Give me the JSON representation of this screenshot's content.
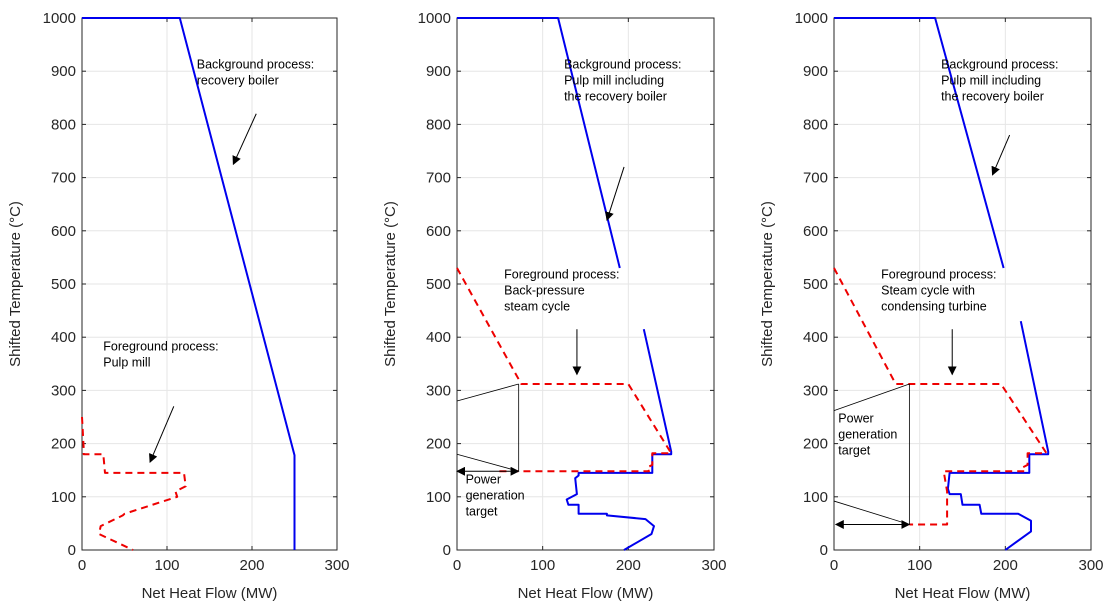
{
  "chart_data": [
    {
      "type": "line",
      "xlabel": "Net Heat Flow (MW)",
      "ylabel": "Shifted Temperature (°C)",
      "xlim": [
        0,
        300
      ],
      "ylim": [
        0,
        1000
      ],
      "xticks": [
        "0",
        "100",
        "200",
        "300"
      ],
      "yticks": [
        "0",
        "100",
        "200",
        "300",
        "400",
        "500",
        "600",
        "700",
        "800",
        "900",
        "1000"
      ],
      "grid": true,
      "series": [
        {
          "style": "solid",
          "color": "#0000ee",
          "x": [
            0,
            115,
            250,
            250
          ],
          "y": [
            1000,
            1000,
            178,
            0
          ]
        },
        {
          "style": "dashed",
          "color": "#ee0000",
          "x": [
            0,
            2,
            2,
            25,
            27,
            120,
            122,
            110,
            112,
            50,
            48,
            22,
            20,
            60
          ],
          "y": [
            250,
            190,
            180,
            180,
            145,
            145,
            120,
            110,
            100,
            68,
            65,
            45,
            30,
            0
          ]
        }
      ],
      "annotations": [
        {
          "lines": [
            "Background process:",
            "recovery boiler"
          ],
          "x": 135,
          "y": 905,
          "arrow": [
            [
              205,
              820
            ],
            [
              178,
              725
            ]
          ]
        },
        {
          "lines": [
            "Foreground process:",
            "Pulp mill"
          ],
          "x": 25,
          "y": 375,
          "arrow": [
            [
              108,
              270
            ],
            [
              80,
              165
            ]
          ]
        }
      ]
    },
    {
      "type": "line",
      "xlabel": "Net Heat Flow (MW)",
      "ylabel": "Shifted Temperature (°C)",
      "xlim": [
        0,
        300
      ],
      "ylim": [
        0,
        1000
      ],
      "xticks": [
        "0",
        "100",
        "200",
        "300"
      ],
      "yticks": [
        "0",
        "100",
        "200",
        "300",
        "400",
        "500",
        "600",
        "700",
        "800",
        "900",
        "1000"
      ],
      "grid": true,
      "series": [
        {
          "style": "solid",
          "color": "#0000ee",
          "x": [
            0,
            118,
            190
          ],
          "y": [
            1000,
            1000,
            530
          ]
        },
        {
          "style": "solid",
          "color": "#0000ee",
          "x": [
            218,
            250,
            250,
            228,
            228,
            142,
            142,
            138,
            140,
            128,
            130,
            142,
            142,
            175,
            175,
            220,
            230,
            227,
            195
          ],
          "y": [
            415,
            185,
            180,
            180,
            145,
            145,
            140,
            135,
            105,
            95,
            85,
            85,
            68,
            68,
            65,
            58,
            45,
            30,
            0
          ]
        },
        {
          "style": "dashed",
          "color": "#ee0000",
          "x": [
            0,
            75,
            200,
            250,
            228,
            228,
            222,
            224,
            70,
            48
          ],
          "y": [
            530,
            312,
            312,
            182,
            182,
            160,
            155,
            148,
            148,
            148
          ]
        }
      ],
      "annotations": [
        {
          "lines": [
            "Background process:",
            "Pulp mill including",
            "the recovery boiler"
          ],
          "x": 125,
          "y": 905,
          "arrow": [
            [
              195,
              720
            ],
            [
              175,
              620
            ]
          ]
        },
        {
          "lines": [
            "Foreground process:",
            "Back-pressure",
            "steam cycle"
          ],
          "x": 55,
          "y": 510,
          "arrow": [
            [
              140,
              415
            ],
            [
              140,
              330
            ]
          ]
        },
        {
          "lines": [
            "Power",
            "generation",
            "target"
          ],
          "x": 10,
          "y": 125
        }
      ]
    },
    {
      "type": "line",
      "xlabel": "Net Heat Flow (MW)",
      "ylabel": "Shifted Temperature (°C)",
      "xlim": [
        0,
        300
      ],
      "ylim": [
        0,
        1000
      ],
      "xticks": [
        "0",
        "100",
        "200",
        "300"
      ],
      "yticks": [
        "0",
        "100",
        "200",
        "300",
        "400",
        "500",
        "600",
        "700",
        "800",
        "900",
        "1000"
      ],
      "grid": true,
      "series": [
        {
          "style": "solid",
          "color": "#0000ee",
          "x": [
            0,
            118,
            198
          ],
          "y": [
            1000,
            1000,
            530
          ]
        },
        {
          "style": "solid",
          "color": "#0000ee",
          "x": [
            218,
            250,
            250,
            228,
            228,
            135,
            133,
            135,
            148,
            150,
            170,
            172,
            215,
            230,
            230,
            200
          ],
          "y": [
            430,
            185,
            180,
            180,
            145,
            145,
            115,
            105,
            105,
            85,
            85,
            68,
            68,
            55,
            35,
            0
          ]
        },
        {
          "style": "dashed",
          "color": "#ee0000",
          "x": [
            0,
            72,
            195,
            248,
            226,
            226,
            220,
            222,
            128,
            132,
            132,
            88
          ],
          "y": [
            530,
            312,
            312,
            182,
            182,
            160,
            155,
            148,
            148,
            110,
            48,
            48
          ]
        }
      ],
      "annotations": [
        {
          "lines": [
            "Background process:",
            "Pulp mill including",
            "the recovery boiler"
          ],
          "x": 125,
          "y": 905,
          "arrow": [
            [
              205,
              780
            ],
            [
              185,
              705
            ]
          ]
        },
        {
          "lines": [
            "Foreground process:",
            "Steam cycle with",
            "condensing turbine"
          ],
          "x": 55,
          "y": 510,
          "arrow": [
            [
              138,
              415
            ],
            [
              138,
              330
            ]
          ]
        },
        {
          "lines": [
            "Power",
            "generation",
            "target"
          ],
          "x": 5,
          "y": 240
        }
      ]
    }
  ]
}
